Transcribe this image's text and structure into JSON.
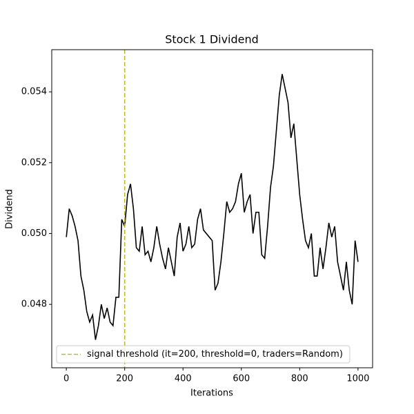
{
  "chart_data": {
    "type": "line",
    "title": "Stock 1 Dividend",
    "xlabel": "Iterations",
    "ylabel": "Dividend",
    "x": [
      0,
      10,
      20,
      30,
      40,
      50,
      60,
      70,
      80,
      90,
      100,
      110,
      120,
      130,
      140,
      150,
      160,
      170,
      180,
      190,
      200,
      210,
      220,
      230,
      240,
      250,
      260,
      270,
      280,
      290,
      300,
      310,
      320,
      330,
      340,
      350,
      360,
      370,
      380,
      390,
      400,
      410,
      420,
      430,
      440,
      450,
      460,
      470,
      480,
      490,
      500,
      510,
      520,
      530,
      540,
      550,
      560,
      570,
      580,
      590,
      600,
      610,
      620,
      630,
      640,
      650,
      660,
      670,
      680,
      690,
      700,
      710,
      720,
      730,
      740,
      750,
      760,
      770,
      780,
      790,
      800,
      810,
      820,
      830,
      840,
      850,
      860,
      870,
      880,
      890,
      900,
      910,
      920,
      930,
      940,
      950,
      960,
      970,
      980,
      990,
      1000
    ],
    "series": [
      {
        "color": "#000000",
        "values": [
          0.0499,
          0.0507,
          0.0505,
          0.0502,
          0.0498,
          0.0488,
          0.0484,
          0.0478,
          0.0475,
          0.0477,
          0.047,
          0.0474,
          0.048,
          0.0476,
          0.0479,
          0.0475,
          0.0474,
          0.0482,
          0.0482,
          0.0504,
          0.0502,
          0.0511,
          0.0514,
          0.0507,
          0.0496,
          0.0495,
          0.0502,
          0.0494,
          0.0495,
          0.0492,
          0.0496,
          0.0502,
          0.0497,
          0.0493,
          0.049,
          0.0496,
          0.0492,
          0.0488,
          0.0499,
          0.0503,
          0.0495,
          0.0497,
          0.0502,
          0.0496,
          0.0497,
          0.0504,
          0.0507,
          0.0501,
          0.05,
          0.0499,
          0.0498,
          0.0484,
          0.0486,
          0.0492,
          0.05,
          0.0509,
          0.0506,
          0.0507,
          0.0509,
          0.0514,
          0.0517,
          0.0506,
          0.0509,
          0.0511,
          0.05,
          0.0506,
          0.0506,
          0.0494,
          0.0493,
          0.0502,
          0.0513,
          0.0519,
          0.0529,
          0.0539,
          0.0545,
          0.0541,
          0.0537,
          0.0527,
          0.0531,
          0.0521,
          0.0511,
          0.0504,
          0.0498,
          0.0496,
          0.05,
          0.0488,
          0.0488,
          0.0496,
          0.049,
          0.0496,
          0.0503,
          0.0499,
          0.0502,
          0.0492,
          0.0488,
          0.0484,
          0.0492,
          0.0484,
          0.048,
          0.0498,
          0.0492
        ]
      }
    ],
    "vlines": [
      {
        "x": 200,
        "color": "#bcbd22",
        "label": "signal threshold (it=200, threshold=0, traders=Random)"
      }
    ],
    "xlim": [
      -50,
      1050
    ],
    "ylim": [
      0.04621,
      0.05519
    ],
    "xticks": [
      0,
      200,
      400,
      600,
      800,
      1000
    ],
    "yticks": [
      0.048,
      {
        "value": 0.05,
        "label": "0.050"
      },
      0.052,
      0.054
    ],
    "legend": "lower left"
  }
}
